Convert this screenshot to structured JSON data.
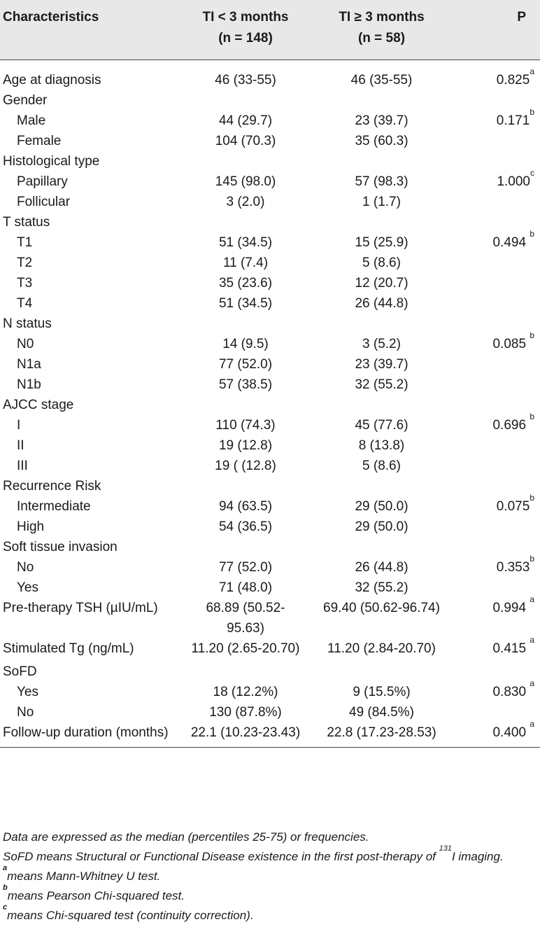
{
  "header": {
    "col0": "Characteristics",
    "col1_line1": "TI < 3 months",
    "col1_line2": "(n = 148)",
    "col2_line1": "TI ≥ 3 months",
    "col2_line2": "(n = 58)",
    "col3": "P"
  },
  "rows": [
    {
      "label": "Age at diagnosis",
      "indent": false,
      "v1": "46 (33-55)",
      "v2": "46 (35-55)",
      "p": "0.825",
      "sup": "a"
    },
    {
      "label": "Gender",
      "indent": false,
      "v1": "",
      "v2": "",
      "p": "",
      "sup": ""
    },
    {
      "label": "Male",
      "indent": true,
      "v1": "44 (29.7)",
      "v2": "23 (39.7)",
      "p": "0.171",
      "sup": "b"
    },
    {
      "label": "Female",
      "indent": true,
      "v1": "104 (70.3)",
      "v2": "35 (60.3)",
      "p": "",
      "sup": ""
    },
    {
      "label": "Histological type",
      "indent": false,
      "v1": "",
      "v2": "",
      "p": "",
      "sup": ""
    },
    {
      "label": "Papillary",
      "indent": true,
      "v1": "145 (98.0)",
      "v2": "57 (98.3)",
      "p": "1.000",
      "sup": "c"
    },
    {
      "label": "Follicular",
      "indent": true,
      "v1": "3 (2.0)",
      "v2": "1 (1.7)",
      "p": "",
      "sup": ""
    },
    {
      "label": "T status",
      "indent": false,
      "v1": "",
      "v2": "",
      "p": "",
      "sup": ""
    },
    {
      "label": "T1",
      "indent": true,
      "v1": "51 (34.5)",
      "v2": "15 (25.9)",
      "p": "0.494 ",
      "sup": "b"
    },
    {
      "label": "T2",
      "indent": true,
      "v1": "11 (7.4)",
      "v2": "5 (8.6)",
      "p": "",
      "sup": ""
    },
    {
      "label": "T3",
      "indent": true,
      "v1": "35 (23.6)",
      "v2": "12 (20.7)",
      "p": "",
      "sup": ""
    },
    {
      "label": "T4",
      "indent": true,
      "v1": "51 (34.5)",
      "v2": "26 (44.8)",
      "p": "",
      "sup": ""
    },
    {
      "label": "N status",
      "indent": false,
      "v1": "",
      "v2": "",
      "p": "",
      "sup": ""
    },
    {
      "label": "N0",
      "indent": true,
      "v1": "14 (9.5)",
      "v2": "3 (5.2)",
      "p": "0.085 ",
      "sup": "b"
    },
    {
      "label": "N1a",
      "indent": true,
      "v1": "77 (52.0)",
      "v2": "23 (39.7)",
      "p": "",
      "sup": ""
    },
    {
      "label": "N1b",
      "indent": true,
      "v1": "57 (38.5)",
      "v2": "32 (55.2)",
      "p": "",
      "sup": ""
    },
    {
      "label": "AJCC stage",
      "indent": false,
      "v1": "",
      "v2": "",
      "p": "",
      "sup": ""
    },
    {
      "label": "I",
      "indent": true,
      "v1": "110 (74.3)",
      "v2": "45 (77.6)",
      "p": "0.696 ",
      "sup": "b"
    },
    {
      "label": "II",
      "indent": true,
      "v1": "19 (12.8)",
      "v2": "8 (13.8)",
      "p": "",
      "sup": ""
    },
    {
      "label": "III",
      "indent": true,
      "v1": "19 ( (12.8)",
      "v2": "5 (8.6)",
      "p": "",
      "sup": ""
    },
    {
      "label": "Recurrence Risk",
      "indent": false,
      "v1": "",
      "v2": "",
      "p": "",
      "sup": ""
    },
    {
      "label": "Intermediate",
      "indent": true,
      "v1": "94 (63.5)",
      "v2": "29 (50.0)",
      "p": "0.075",
      "sup": "b"
    },
    {
      "label": "High",
      "indent": true,
      "v1": "54 (36.5)",
      "v2": "29 (50.0)",
      "p": "",
      "sup": ""
    },
    {
      "label": "Soft tissue invasion",
      "indent": false,
      "v1": "",
      "v2": "",
      "p": "",
      "sup": ""
    },
    {
      "label": "No",
      "indent": true,
      "v1": "77 (52.0)",
      "v2": "26 (44.8)",
      "p": "0.353",
      "sup": "b"
    },
    {
      "label": "Yes",
      "indent": true,
      "v1": "71 (48.0)",
      "v2": "32 (55.2)",
      "p": "",
      "sup": ""
    },
    {
      "label": "Pre-therapy TSH (µIU/mL)",
      "indent": false,
      "v1": "68.89 (50.52-95.63)",
      "v2": "69.40 (50.62-96.74)",
      "p": "0.994 ",
      "sup": "a"
    },
    {
      "label": "Stimulated Tg (ng/mL)",
      "indent": false,
      "v1": "11.20 (2.65-20.70)",
      "v2": "11.20 (2.84-20.70)",
      "p": "0.415 ",
      "sup": "a"
    },
    {
      "label": "SoFD",
      "indent": false,
      "v1": "",
      "v2": "",
      "p": "",
      "sup": ""
    },
    {
      "label": "Yes",
      "indent": true,
      "v1": "18 (12.2%)",
      "v2": "9 (15.5%)",
      "p": "0.830 ",
      "sup": "a"
    },
    {
      "label": "No",
      "indent": true,
      "v1": "130 (87.8%)",
      "v2": "49 (84.5%)",
      "p": "",
      "sup": ""
    },
    {
      "label": "Follow-up duration (months)",
      "indent": false,
      "v1": "22.1 (10.23-23.43)",
      "v2": "22.8 (17.23-28.53)",
      "p": "0.400 ",
      "sup": "a"
    }
  ],
  "notes": {
    "n1": "Data are expressed as the median (percentiles 25-75) or frequencies.",
    "n2_pre": "SoFD means Structural or Functional Disease existence in the first post-therapy of ",
    "n2_sup": "131",
    "n2_post": "I imaging.",
    "n3_mark": "a",
    "n3_text": "means Mann-Whitney U test.",
    "n4_mark": "b",
    "n4_text": "means Pearson Chi-squared test.",
    "n5_mark": "c",
    "n5_text": "means Chi-squared test (continuity correction)."
  }
}
